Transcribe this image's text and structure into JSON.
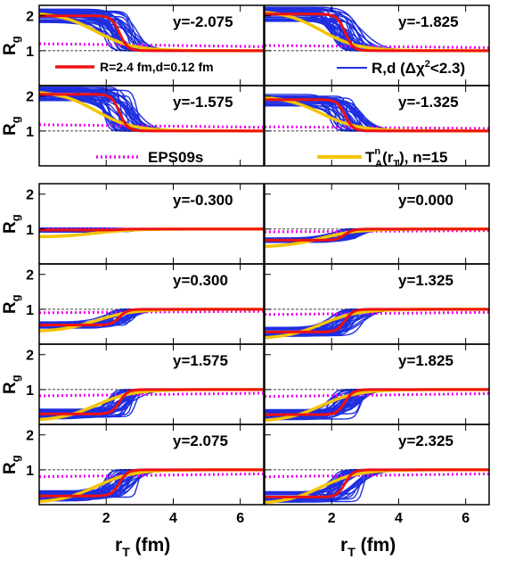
{
  "chart_data": {
    "type": "line",
    "layout": "grid of 6 rows x 2 columns of panels sharing axes",
    "xlabel_parts": {
      "main": "r",
      "sub": "T",
      "unit": " (fm)"
    },
    "ylabel_parts": {
      "main": "R",
      "sub": "g"
    },
    "xlim": [
      0,
      6.7
    ],
    "ylim": [
      0,
      2.3
    ],
    "xticks": [
      2,
      4,
      6
    ],
    "xtick_labels": [
      "2",
      "4",
      "6"
    ],
    "yticks": [
      1,
      2
    ],
    "ytick_labels": [
      "1",
      "2"
    ],
    "reference_line_y": 1,
    "colors": {
      "band": "#1f2fe0",
      "red": "#ee1111",
      "yellow": "#f5c400",
      "magenta": "#ee00ee"
    },
    "legend": {
      "red_line": "R=2.4 fm,d=0.12 fm",
      "blue_band_prefix": "R,d (",
      "blue_band_delta": "Δχ",
      "blue_band_sup": "2",
      "blue_band_suffix": "<2.3)",
      "magenta_dotted": "EPS09s",
      "yellow_main": "T",
      "yellow_sup": "n",
      "yellow_sub": "A",
      "yellow_arg_prefix": "(r",
      "yellow_arg_sub": "T",
      "yellow_suffix": "), n=15"
    },
    "panels": [
      {
        "label": "y=-2.075",
        "inner": 2.0,
        "eps": 1.2
      },
      {
        "label": "y=-1.825",
        "inner": 2.05,
        "eps": 1.15
      },
      {
        "label": "y=-1.575",
        "inner": 2.05,
        "eps": 1.18
      },
      {
        "label": "y=-1.325",
        "inner": 1.9,
        "eps": 1.12
      },
      {
        "label": "y=-0.300",
        "inner": 0.97,
        "eps": 1.0
      },
      {
        "label": "y=0.000",
        "inner": 0.68,
        "eps": 0.92
      },
      {
        "label": "y=0.300",
        "inner": 0.55,
        "eps": 0.9
      },
      {
        "label": "y=1.325",
        "inner": 0.35,
        "eps": 0.85
      },
      {
        "label": "y=1.575",
        "inner": 0.3,
        "eps": 0.82
      },
      {
        "label": "y=1.825",
        "inner": 0.28,
        "eps": 0.8
      },
      {
        "label": "y=2.075",
        "inner": 0.25,
        "eps": 0.8
      },
      {
        "label": "y=2.325",
        "inner": 0.22,
        "eps": 0.8
      }
    ]
  }
}
